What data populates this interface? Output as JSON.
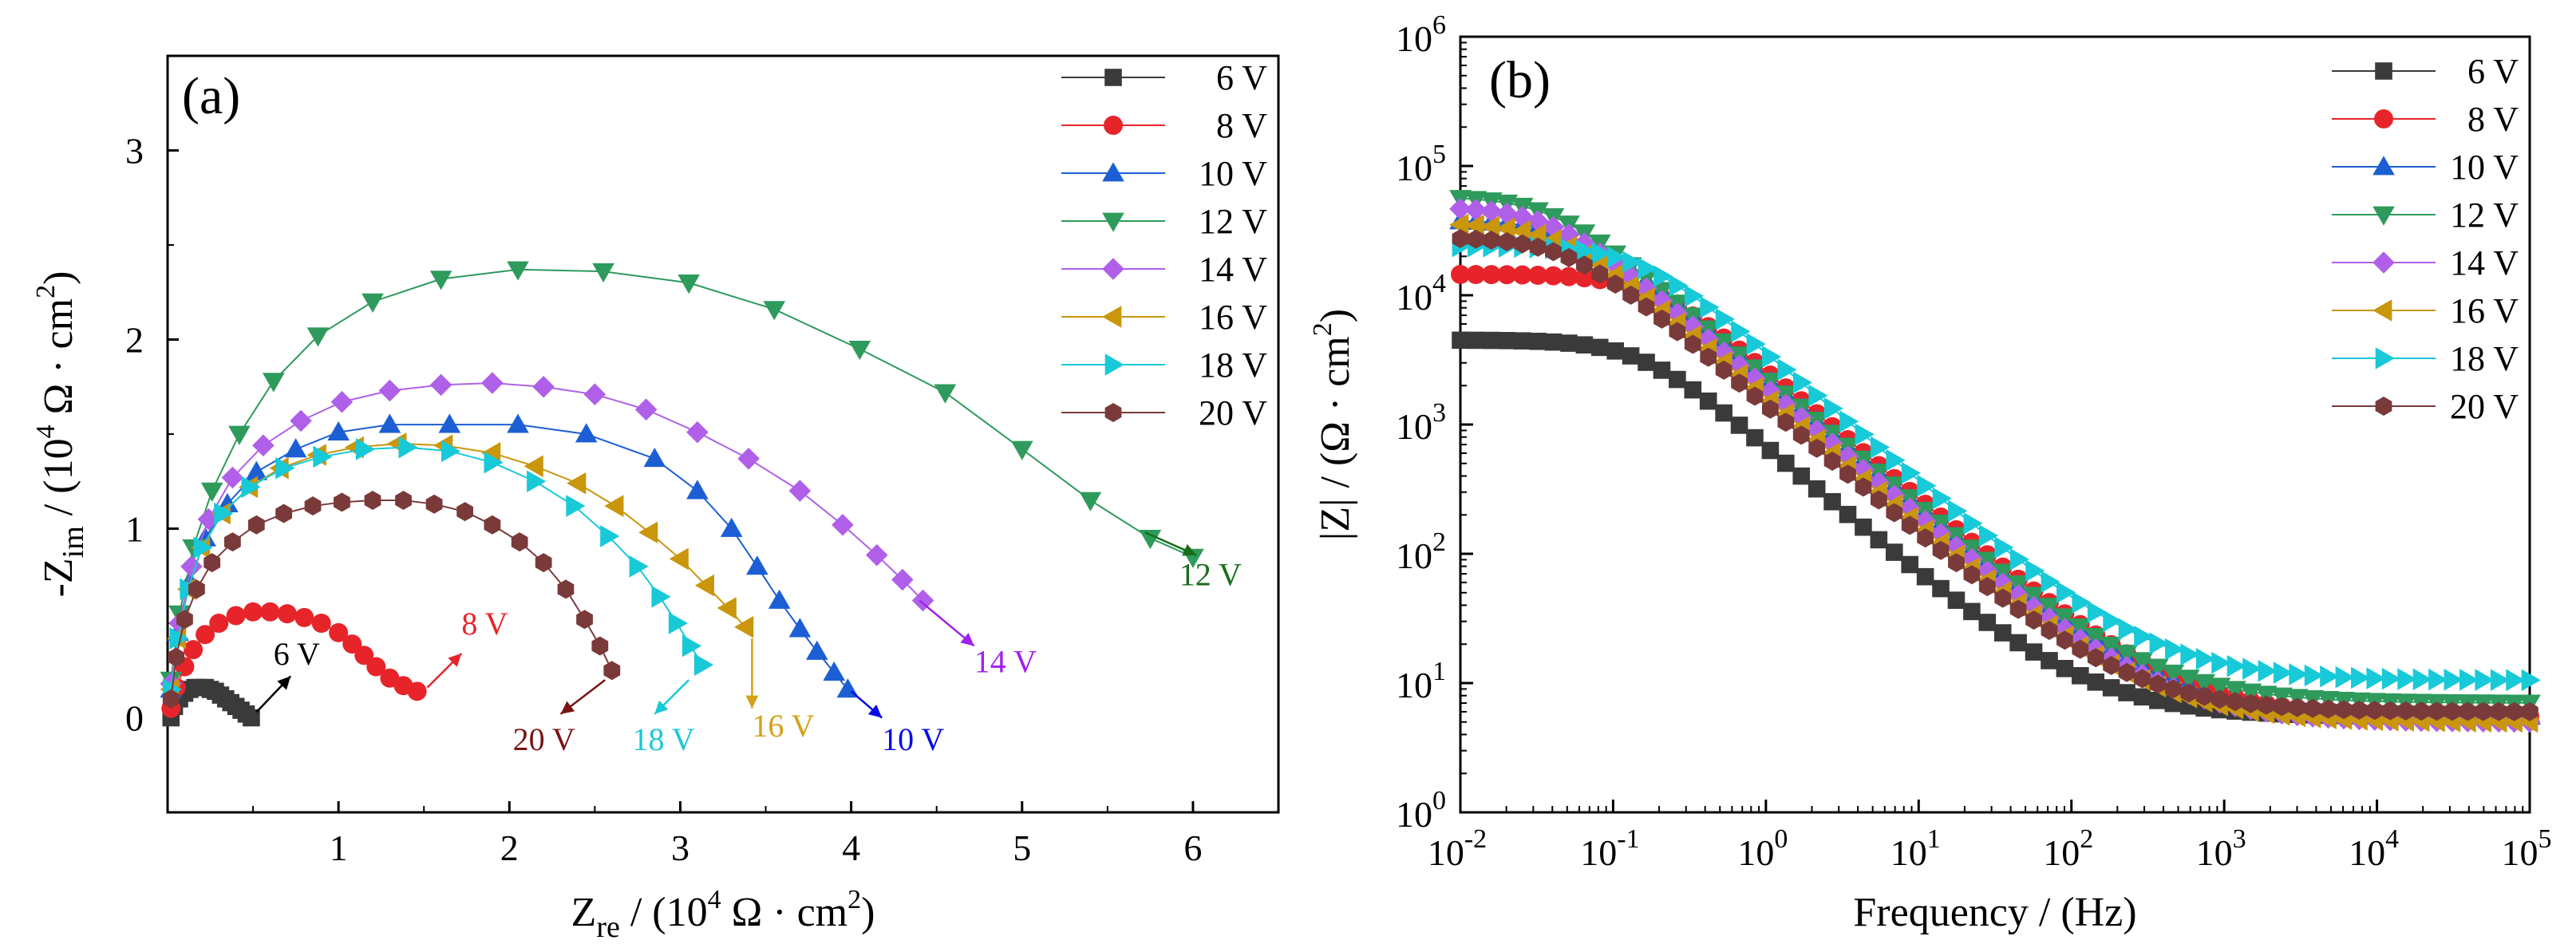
{
  "chart_data": [
    {
      "type": "scatter",
      "panel_label": "(a)",
      "xlabel": "Z_re / (10^4 Ω · cm^2)",
      "ylabel": "-Z_im / (10^4 Ω · cm^2)",
      "xlim": [
        0,
        6.5
      ],
      "ylim": [
        -0.5,
        3.5
      ],
      "x_ticks": [
        1,
        2,
        3,
        4,
        5,
        6
      ],
      "y_ticks": [
        0,
        1,
        2,
        3
      ],
      "legend_position": "top-right",
      "series": [
        {
          "name": "6 V",
          "color": "#3a3a3a",
          "marker": "square",
          "x": [
            0.02,
            0.04,
            0.07,
            0.1,
            0.13,
            0.16,
            0.19,
            0.22,
            0.25,
            0.28,
            0.31,
            0.34,
            0.37,
            0.4,
            0.43,
            0.46,
            0.49
          ],
          "y": [
            0.0,
            0.06,
            0.1,
            0.13,
            0.15,
            0.16,
            0.16,
            0.16,
            0.15,
            0.14,
            0.12,
            0.1,
            0.08,
            0.06,
            0.04,
            0.02,
            0.0
          ],
          "annotation": {
            "text": "6 V",
            "x": 0.62,
            "y": 0.28,
            "arrow_from": [
              0.52,
              0.03
            ],
            "arrow_to": [
              0.72,
              0.22
            ],
            "color": "#000000"
          }
        },
        {
          "name": "8 V",
          "color": "#e8242b",
          "marker": "circle",
          "x": [
            0.02,
            0.05,
            0.1,
            0.15,
            0.22,
            0.3,
            0.4,
            0.5,
            0.6,
            0.7,
            0.8,
            0.9,
            1.0,
            1.08,
            1.15,
            1.22,
            1.3,
            1.38,
            1.46
          ],
          "y": [
            0.05,
            0.16,
            0.27,
            0.36,
            0.44,
            0.5,
            0.54,
            0.56,
            0.56,
            0.55,
            0.53,
            0.5,
            0.45,
            0.39,
            0.33,
            0.27,
            0.21,
            0.17,
            0.14
          ],
          "annotation": {
            "text": "8 V",
            "x": 1.72,
            "y": 0.44,
            "arrow_from": [
              1.52,
              0.16
            ],
            "arrow_to": [
              1.72,
              0.34
            ],
            "color": "#e8242b"
          }
        },
        {
          "name": "10 V",
          "color": "#1c5fd4",
          "marker": "triangle-up",
          "x": [
            0.02,
            0.06,
            0.13,
            0.22,
            0.35,
            0.52,
            0.75,
            1.0,
            1.3,
            1.65,
            2.05,
            2.45,
            2.85,
            3.1,
            3.3,
            3.45,
            3.58,
            3.7,
            3.8,
            3.9,
            3.98
          ],
          "y": [
            0.15,
            0.45,
            0.72,
            0.95,
            1.13,
            1.3,
            1.42,
            1.51,
            1.55,
            1.55,
            1.55,
            1.5,
            1.37,
            1.2,
            1.0,
            0.8,
            0.62,
            0.47,
            0.35,
            0.24,
            0.15
          ],
          "annotation": {
            "text": "10 V",
            "x": 4.18,
            "y": -0.17,
            "arrow_from": [
              4.0,
              0.14
            ],
            "arrow_to": [
              4.18,
              0.0
            ],
            "color": "#0a0ae6"
          }
        },
        {
          "name": "12 V",
          "color": "#2e9a5c",
          "marker": "triangle-down",
          "x": [
            0.02,
            0.07,
            0.15,
            0.26,
            0.42,
            0.62,
            0.88,
            1.2,
            1.6,
            2.05,
            2.55,
            3.05,
            3.55,
            4.05,
            4.55,
            5.0,
            5.4,
            5.75,
            6.0
          ],
          "y": [
            0.2,
            0.55,
            0.9,
            1.2,
            1.5,
            1.78,
            2.02,
            2.2,
            2.32,
            2.37,
            2.36,
            2.3,
            2.16,
            1.95,
            1.72,
            1.42,
            1.15,
            0.95,
            0.85
          ],
          "annotation": {
            "text": "12 V",
            "x": 5.92,
            "y": 0.7,
            "arrow_from": [
              5.72,
              0.98
            ],
            "arrow_to": [
              6.02,
              0.86
            ],
            "color": "#1a6e1a"
          }
        },
        {
          "name": "14 V",
          "color": "#b060e8",
          "marker": "diamond",
          "x": [
            0.02,
            0.07,
            0.14,
            0.24,
            0.38,
            0.56,
            0.78,
            1.02,
            1.3,
            1.6,
            1.9,
            2.2,
            2.5,
            2.8,
            3.1,
            3.4,
            3.7,
            3.95,
            4.15,
            4.3,
            4.42
          ],
          "y": [
            0.18,
            0.5,
            0.8,
            1.05,
            1.27,
            1.44,
            1.57,
            1.67,
            1.73,
            1.76,
            1.77,
            1.75,
            1.71,
            1.63,
            1.51,
            1.37,
            1.2,
            1.02,
            0.86,
            0.73,
            0.62
          ],
          "annotation": {
            "text": "14 V",
            "x": 4.72,
            "y": 0.24,
            "arrow_from": [
              4.4,
              0.62
            ],
            "arrow_to": [
              4.72,
              0.38
            ],
            "color": "#a020f0"
          }
        },
        {
          "name": "16 V",
          "color": "#c9960c",
          "marker": "triangle-left",
          "x": [
            0.02,
            0.06,
            0.12,
            0.2,
            0.32,
            0.48,
            0.66,
            0.88,
            1.1,
            1.35,
            1.62,
            1.9,
            2.15,
            2.4,
            2.62,
            2.82,
            3.0,
            3.15,
            3.28,
            3.38
          ],
          "y": [
            0.15,
            0.42,
            0.68,
            0.9,
            1.08,
            1.22,
            1.32,
            1.39,
            1.43,
            1.45,
            1.44,
            1.4,
            1.33,
            1.24,
            1.12,
            0.98,
            0.84,
            0.7,
            0.58,
            0.48
          ],
          "annotation": {
            "text": "16 V",
            "x": 3.42,
            "y": -0.1,
            "arrow_from": [
              3.42,
              0.42
            ],
            "arrow_to": [
              3.42,
              0.05
            ],
            "color": "#d4a017"
          }
        },
        {
          "name": "18 V",
          "color": "#18c9d8",
          "marker": "triangle-right",
          "x": [
            0.02,
            0.06,
            0.12,
            0.2,
            0.32,
            0.48,
            0.68,
            0.9,
            1.15,
            1.4,
            1.65,
            1.9,
            2.15,
            2.38,
            2.58,
            2.75,
            2.88,
            2.98,
            3.06,
            3.13
          ],
          "y": [
            0.15,
            0.42,
            0.68,
            0.9,
            1.08,
            1.22,
            1.32,
            1.38,
            1.42,
            1.43,
            1.41,
            1.35,
            1.25,
            1.12,
            0.96,
            0.8,
            0.64,
            0.5,
            0.38,
            0.28
          ],
          "annotation": {
            "text": "18 V",
            "x": 2.72,
            "y": -0.17,
            "arrow_from": [
              3.05,
              0.2
            ],
            "arrow_to": [
              2.85,
              0.02
            ],
            "color": "#18c9d8"
          }
        },
        {
          "name": "20 V",
          "color": "#7a3a3a",
          "marker": "hexagon",
          "x": [
            0.02,
            0.05,
            0.1,
            0.17,
            0.26,
            0.38,
            0.52,
            0.68,
            0.85,
            1.02,
            1.2,
            1.38,
            1.56,
            1.74,
            1.9,
            2.06,
            2.2,
            2.33,
            2.44,
            2.53,
            2.6
          ],
          "y": [
            0.1,
            0.32,
            0.52,
            0.68,
            0.82,
            0.93,
            1.02,
            1.08,
            1.12,
            1.14,
            1.15,
            1.15,
            1.13,
            1.09,
            1.02,
            0.93,
            0.82,
            0.68,
            0.52,
            0.38,
            0.25
          ],
          "annotation": {
            "text": "20 V",
            "x": 2.02,
            "y": -0.17,
            "arrow_from": [
              2.56,
              0.2
            ],
            "arrow_to": [
              2.3,
              0.02
            ],
            "color": "#7a1414"
          }
        }
      ]
    },
    {
      "type": "scatter",
      "panel_label": "(b)",
      "xlabel": "Frequency / (Hz)",
      "ylabel": "|Z| / (Ω · cm^2)",
      "x_scale": "log",
      "y_scale": "log",
      "xlim": [
        0.01,
        100000
      ],
      "ylim": [
        1,
        1000000
      ],
      "x_ticks": [
        "10^-2",
        "10^-1",
        "10^0",
        "10^1",
        "10^2",
        "10^3",
        "10^4",
        "10^5"
      ],
      "y_ticks": [
        "10^0",
        "10^1",
        "10^2",
        "10^3",
        "10^4",
        "10^5",
        "10^6"
      ],
      "legend_position": "top-right",
      "series": [
        {
          "name": "6 V",
          "color": "#3a3a3a",
          "marker": "square",
          "z_low": 4500,
          "z_high": 5.5,
          "corner_hz": 0.15
        },
        {
          "name": "8 V",
          "color": "#e8242b",
          "marker": "circle",
          "z_low": 14500,
          "z_high": 5.5,
          "corner_hz": 0.18
        },
        {
          "name": "10 V",
          "color": "#1c5fd4",
          "marker": "triangle-up",
          "z_low": 38000,
          "z_high": 5.5,
          "corner_hz": 0.06
        },
        {
          "name": "12 V",
          "color": "#2e9a5c",
          "marker": "triangle-down",
          "z_low": 58000,
          "z_high": 7.0,
          "corner_hz": 0.04
        },
        {
          "name": "14 V",
          "color": "#b060e8",
          "marker": "diamond",
          "z_low": 48000,
          "z_high": 5.0,
          "corner_hz": 0.04
        },
        {
          "name": "16 V",
          "color": "#c9960c",
          "marker": "triangle-left",
          "z_low": 36000,
          "z_high": 5.0,
          "corner_hz": 0.045
        },
        {
          "name": "18 V",
          "color": "#18c9d8",
          "marker": "triangle-right",
          "z_low": 24000,
          "z_high": 10.5,
          "corner_hz": 0.15
        },
        {
          "name": "20 V",
          "color": "#7a3a3a",
          "marker": "hexagon",
          "z_low": 28000,
          "z_high": 6.0,
          "corner_hz": 0.05
        }
      ]
    }
  ]
}
